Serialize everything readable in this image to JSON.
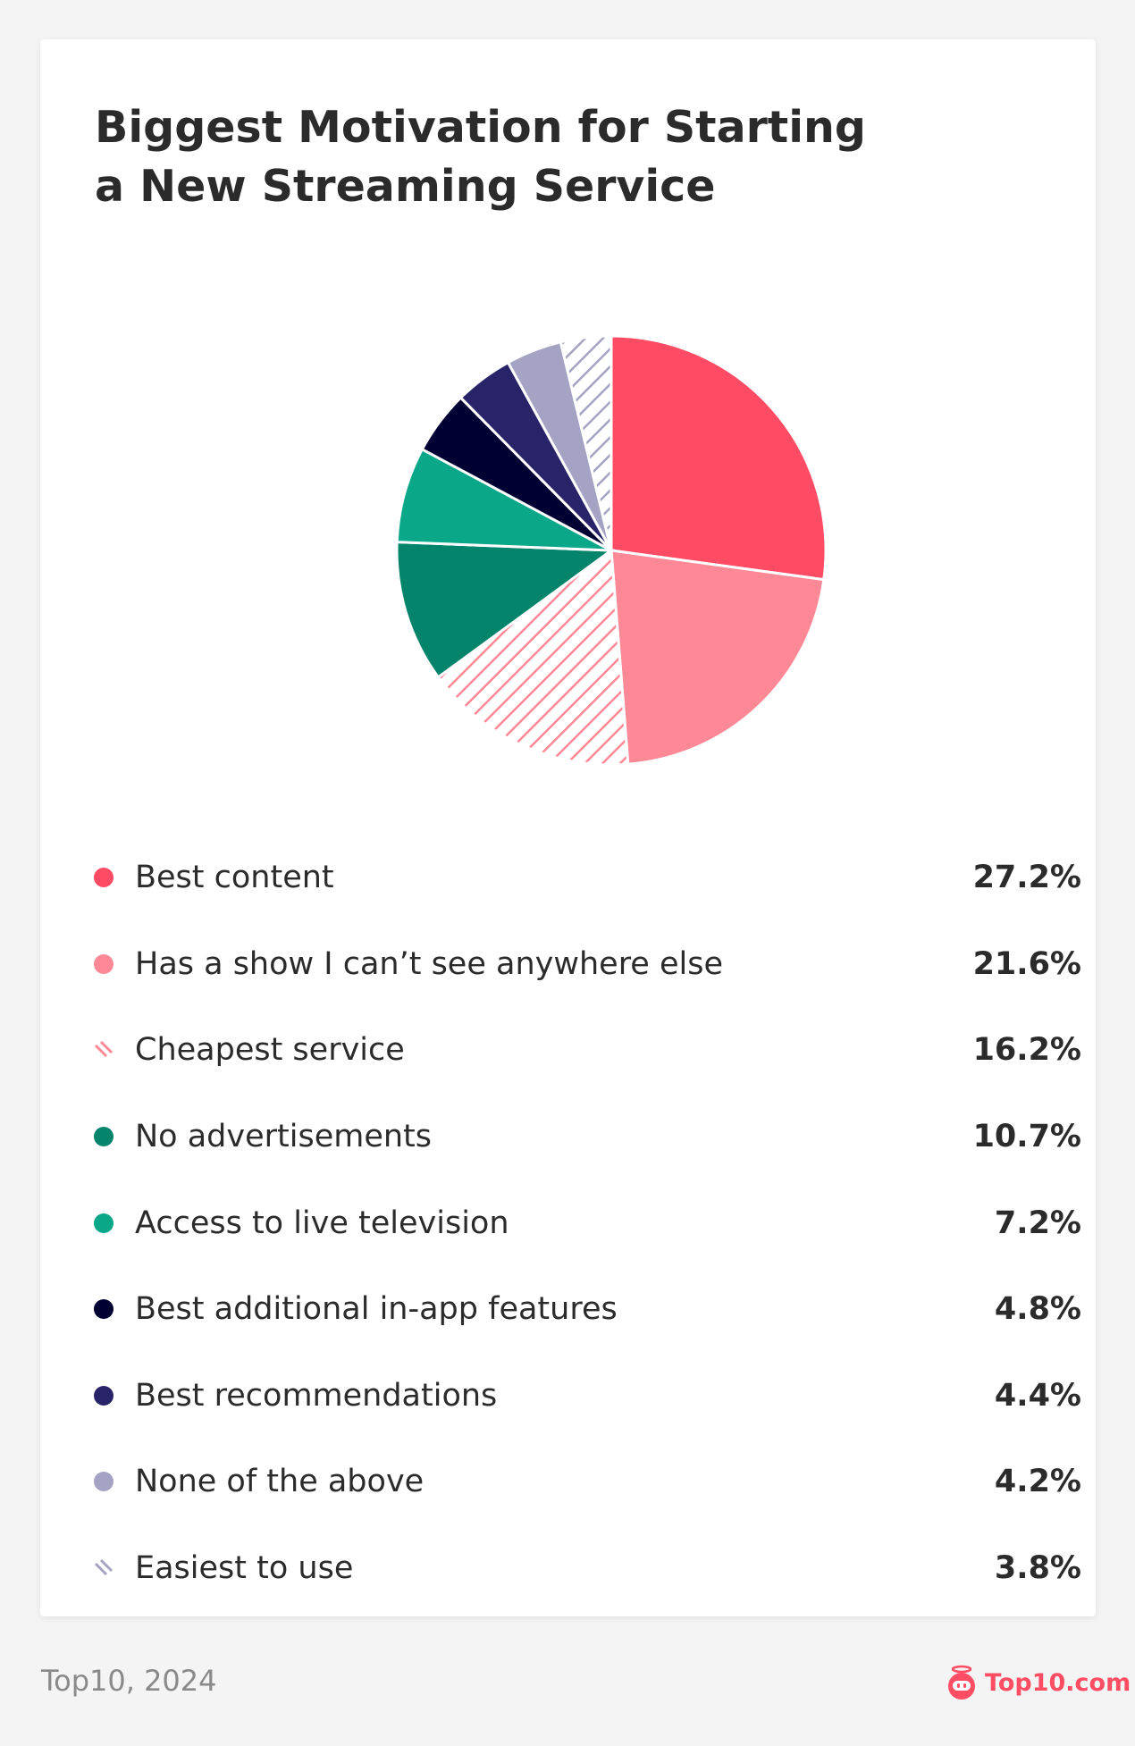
{
  "chart_data": {
    "type": "pie",
    "title": "Biggest Motivation for Starting a New Streaming Service",
    "start_angle": "top",
    "direction": "clockwise",
    "slices": [
      {
        "label": "Best content",
        "value": 27.2,
        "display": "27.2%",
        "color": "#ff4b64",
        "fill": "solid"
      },
      {
        "label": "Has a show I can’t see anywhere else",
        "value": 21.6,
        "display": "21.6%",
        "color": "#ff8896",
        "fill": "solid"
      },
      {
        "label": "Cheapest service",
        "value": 16.2,
        "display": "16.2%",
        "color": "#ff8896",
        "fill": "hatched"
      },
      {
        "label": "No advertisements",
        "value": 10.7,
        "display": "10.7%",
        "color": "#04846b",
        "fill": "solid"
      },
      {
        "label": "Access to live television",
        "value": 7.2,
        "display": "7.2%",
        "color": "#0aa788",
        "fill": "solid"
      },
      {
        "label": "Best additional in-app features",
        "value": 4.8,
        "display": "4.8%",
        "color": "#000033",
        "fill": "solid"
      },
      {
        "label": "Best recommendations",
        "value": 4.4,
        "display": "4.4%",
        "color": "#29246a",
        "fill": "solid"
      },
      {
        "label": "None of the above",
        "value": 4.2,
        "display": "4.2%",
        "color": "#a4a3c4",
        "fill": "solid"
      },
      {
        "label": "Easiest to use",
        "value": 3.8,
        "display": "3.8%",
        "color": "#a4a3c4",
        "fill": "hatched"
      }
    ]
  },
  "footer": {
    "source": "Top10, 2024",
    "logo_text": "Top10.com",
    "brand_color": "#ff4d64"
  }
}
